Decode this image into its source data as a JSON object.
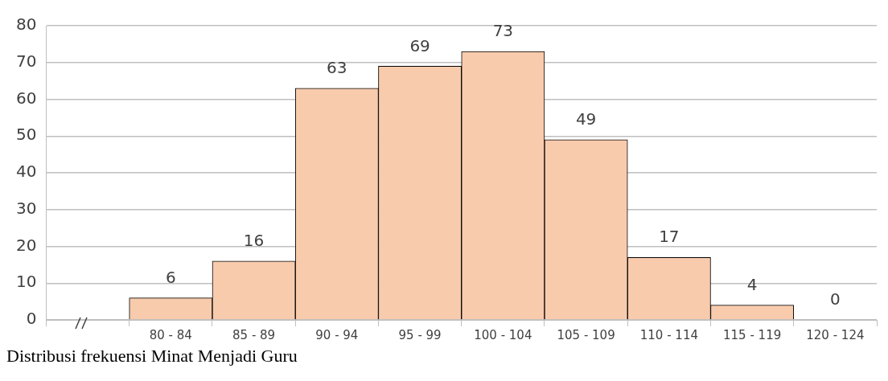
{
  "chart_data": {
    "type": "bar",
    "categories": [
      null,
      "80 - 84",
      "85 - 89",
      "90 - 94",
      "95 - 99",
      "100 - 104",
      "105 - 109",
      "110 - 114",
      "115 - 119",
      "120 - 124"
    ],
    "values": [
      null,
      6,
      16,
      63,
      69,
      73,
      49,
      17,
      4,
      0
    ],
    "color": "#f8cbad",
    "ylim": [
      0,
      80
    ],
    "yticks": [
      0,
      10,
      20,
      30,
      40,
      50,
      60,
      70,
      80
    ],
    "grid": "y",
    "data_labels": true,
    "legend": false,
    "annotations": [
      "Distribusi frekuensi Minat Menjadi Guru"
    ]
  }
}
